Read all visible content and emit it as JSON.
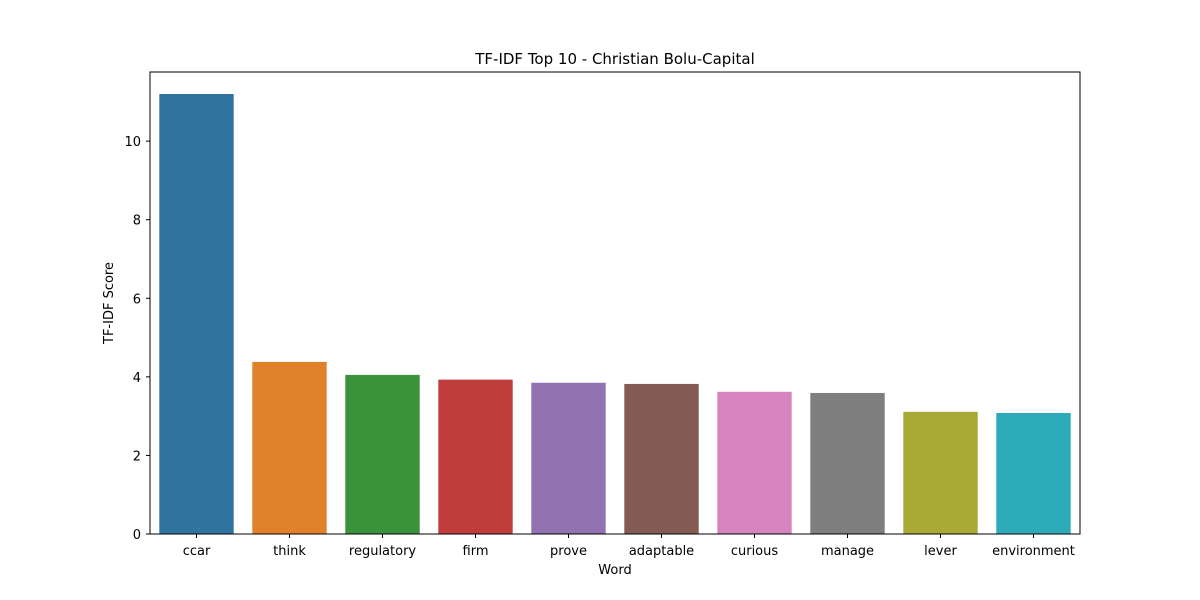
{
  "chart_data": {
    "type": "bar",
    "title": "TF-IDF Top 10 - Christian Bolu-Capital",
    "xlabel": "Word",
    "ylabel": "TF-IDF Score",
    "categories": [
      "ccar",
      "think",
      "regulatory",
      "firm",
      "prove",
      "adaptable",
      "curious",
      "manage",
      "lever",
      "environment"
    ],
    "values": [
      11.2,
      4.38,
      4.05,
      3.93,
      3.85,
      3.82,
      3.62,
      3.59,
      3.11,
      3.08
    ],
    "colors": [
      "#3274a1",
      "#e1812c",
      "#3a923a",
      "#c03d3e",
      "#9372b2",
      "#845b53",
      "#d684bd",
      "#7f7f7f",
      "#a9aa35",
      "#2eabb8"
    ],
    "ylim": [
      0,
      11.76
    ],
    "yticks": [
      0,
      2,
      4,
      6,
      8,
      10
    ],
    "grid": false,
    "legend": "none"
  }
}
